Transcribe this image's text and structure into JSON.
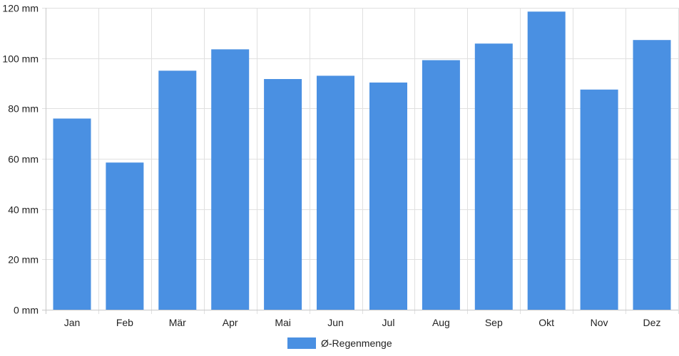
{
  "chart_data": {
    "type": "bar",
    "categories": [
      "Jan",
      "Feb",
      "Mär",
      "Apr",
      "Mai",
      "Jun",
      "Jul",
      "Aug",
      "Sep",
      "Okt",
      "Nov",
      "Dez"
    ],
    "series": [
      {
        "name": "Ø-Regenmenge",
        "values": [
          76,
          58.5,
          95,
          103.5,
          91.7,
          93,
          90.3,
          99.2,
          105.8,
          118.5,
          87.5,
          107.2
        ],
        "color": "#4a90e2"
      }
    ],
    "yticks": [
      "0 mm",
      "20 mm",
      "40 mm",
      "60 mm",
      "80 mm",
      "100 mm",
      "120 mm"
    ],
    "ylim": [
      0,
      120
    ],
    "ytick_step": 20,
    "grid": true,
    "legend_position": "bottom",
    "title": "",
    "xlabel": "",
    "ylabel": ""
  },
  "colors": {
    "bar": "#4a90e2",
    "grid": "#e0e0e0",
    "axis": "#c8c8c8",
    "text": "#222222"
  }
}
